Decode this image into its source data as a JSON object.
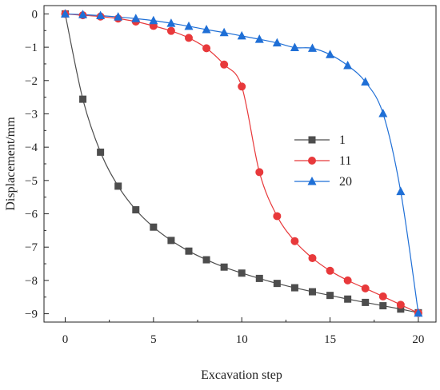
{
  "chart_data": {
    "type": "line",
    "title": "",
    "xlabel": "Excavation step",
    "ylabel": "Displacement/mm",
    "xlim": [
      -1.2,
      21.0
    ],
    "ylim": [
      -9.25,
      0.25
    ],
    "xticks": [
      0,
      5,
      10,
      15,
      20
    ],
    "yticks": [
      0,
      -1,
      -2,
      -3,
      -4,
      -5,
      -6,
      -7,
      -8,
      -9
    ],
    "xtick_labels": [
      "0",
      "5",
      "10",
      "15",
      "20"
    ],
    "ytick_labels": [
      "0",
      "−1",
      "−2",
      "−3",
      "−4",
      "−5",
      "−6",
      "−7",
      "−8",
      "−9"
    ],
    "grid": false,
    "legend_position": "center-right",
    "x": [
      0,
      1,
      2,
      3,
      4,
      5,
      6,
      7,
      8,
      9,
      10,
      11,
      12,
      13,
      14,
      15,
      16,
      17,
      18,
      19,
      20
    ],
    "series": [
      {
        "name": "1",
        "color": "#4d4d4d",
        "marker": "square",
        "values": [
          0,
          -2.56,
          -4.15,
          -5.17,
          -5.88,
          -6.4,
          -6.8,
          -7.12,
          -7.38,
          -7.6,
          -7.78,
          -7.94,
          -8.09,
          -8.22,
          -8.34,
          -8.45,
          -8.56,
          -8.66,
          -8.76,
          -8.86,
          -8.97
        ]
      },
      {
        "name": "11",
        "color": "#e8393b",
        "marker": "circle",
        "values": [
          0,
          -0.04,
          -0.08,
          -0.14,
          -0.23,
          -0.36,
          -0.51,
          -0.72,
          -1.03,
          -1.52,
          -2.18,
          -4.75,
          -6.07,
          -6.82,
          -7.33,
          -7.71,
          -8.0,
          -8.24,
          -8.48,
          -8.73,
          -8.98
        ]
      },
      {
        "name": "20",
        "color": "#1f6fd6",
        "marker": "triangle",
        "values": [
          0,
          -0.02,
          -0.05,
          -0.09,
          -0.14,
          -0.2,
          -0.28,
          -0.37,
          -0.47,
          -0.56,
          -0.66,
          -0.76,
          -0.87,
          -1.01,
          -1.03,
          -1.22,
          -1.55,
          -2.04,
          -2.99,
          -5.33,
          -8.98
        ]
      }
    ]
  }
}
